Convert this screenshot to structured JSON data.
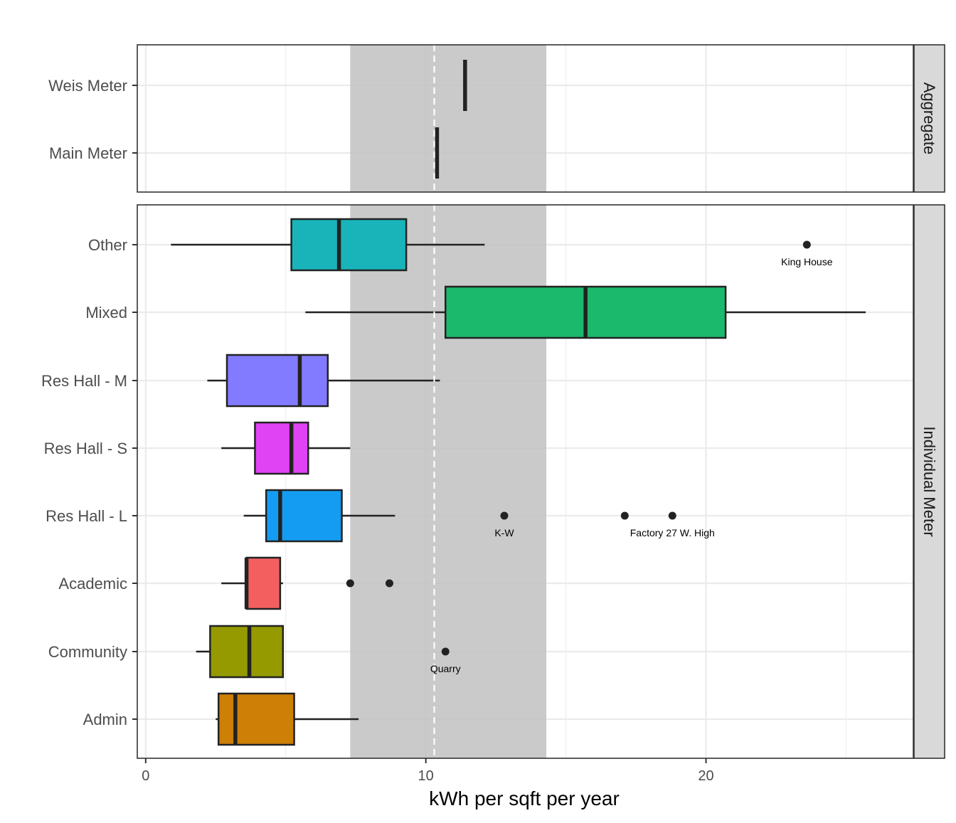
{
  "chart_data": {
    "type": "boxplot",
    "xlabel": "kWh per sqft per year",
    "xlim": [
      -0.3,
      27.4
    ],
    "xticks": [
      0,
      10,
      20
    ],
    "reference_band": {
      "from": 7.3,
      "to": 14.3
    },
    "reference_line": 10.3,
    "panels": [
      {
        "strip": "Aggregate",
        "categories": [
          "Main Meter",
          "Weis Meter"
        ],
        "boxes": [
          {
            "category": "Main Meter",
            "min": 10.4,
            "q1": 10.4,
            "median": 10.4,
            "q3": 10.4,
            "max": 10.4,
            "color": "#000000"
          },
          {
            "category": "Weis Meter",
            "min": 11.4,
            "q1": 11.4,
            "median": 11.4,
            "q3": 11.4,
            "max": 11.4,
            "color": "#000000"
          }
        ],
        "outliers": []
      },
      {
        "strip": "Individual Meter",
        "categories": [
          "Admin",
          "Community",
          "Academic",
          "Res Hall - L",
          "Res Hall - S",
          "Res Hall - M",
          "Mixed",
          "Other"
        ],
        "boxes": [
          {
            "category": "Admin",
            "min": 2.5,
            "q1": 2.6,
            "median": 3.2,
            "q3": 5.3,
            "max": 7.6,
            "color": "#CD7F06"
          },
          {
            "category": "Community",
            "min": 1.8,
            "q1": 2.3,
            "median": 3.7,
            "q3": 4.9,
            "max": 4.9,
            "color": "#949A00"
          },
          {
            "category": "Academic",
            "min": 2.7,
            "q1": 3.6,
            "median": 3.6,
            "q3": 4.8,
            "max": 4.9,
            "color": "#F35F5F"
          },
          {
            "category": "Res Hall - L",
            "min": 3.5,
            "q1": 4.3,
            "median": 4.8,
            "q3": 7.0,
            "max": 8.9,
            "color": "#149CF3"
          },
          {
            "category": "Res Hall - S",
            "min": 2.7,
            "q1": 3.9,
            "median": 5.2,
            "q3": 5.8,
            "max": 7.3,
            "color": "#DF43F3"
          },
          {
            "category": "Res Hall - M",
            "min": 2.2,
            "q1": 2.9,
            "median": 5.5,
            "q3": 6.5,
            "max": 10.5,
            "color": "#837BFF"
          },
          {
            "category": "Mixed",
            "min": 5.7,
            "q1": 10.7,
            "median": 15.7,
            "q3": 20.7,
            "max": 25.7,
            "color": "#1AB96C"
          },
          {
            "category": "Other",
            "min": 0.9,
            "q1": 5.2,
            "median": 6.9,
            "q3": 9.3,
            "max": 12.1,
            "color": "#19B4BA"
          }
        ],
        "outliers": [
          {
            "category": "Other",
            "value": 23.6,
            "label": "King House"
          },
          {
            "category": "Res Hall - L",
            "value": 12.8,
            "label": "K-W"
          },
          {
            "category": "Res Hall - L",
            "value": 17.1,
            "label": ""
          },
          {
            "category": "Res Hall - L",
            "value": 18.8,
            "label": "Factory 27 W. High"
          },
          {
            "category": "Academic",
            "value": 7.3,
            "label": ""
          },
          {
            "category": "Academic",
            "value": 8.7,
            "label": ""
          },
          {
            "category": "Community",
            "value": 10.7,
            "label": "Quarry"
          }
        ]
      }
    ]
  }
}
